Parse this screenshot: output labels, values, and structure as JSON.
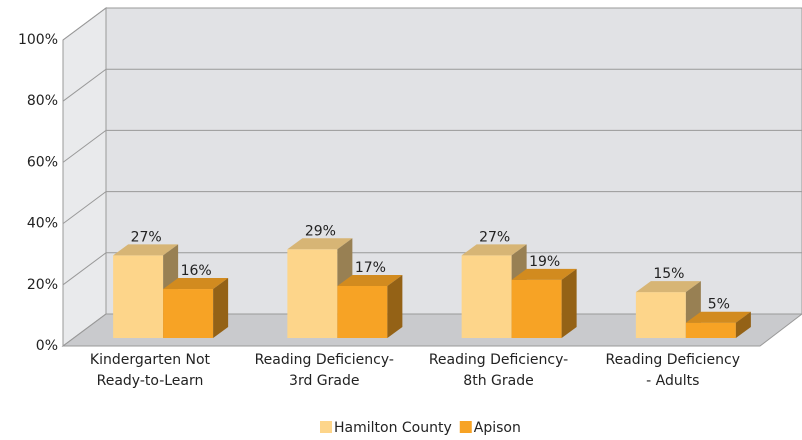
{
  "chart_data": {
    "type": "bar3d",
    "categories": [
      "Kindergarten Not\nReady-to-Learn",
      "Reading Deficiency-\n3rd Grade",
      "Reading Deficiency-\n8th Grade",
      "Reading Deficiency\n- Adults"
    ],
    "series": [
      {
        "name": "Hamilton County",
        "color": "#fdd58a",
        "values": [
          27,
          29,
          27,
          15
        ],
        "value_labels": [
          "27%",
          "29%",
          "27%",
          "15%"
        ]
      },
      {
        "name": "Apison",
        "color": "#f7a325",
        "values": [
          16,
          17,
          19,
          5
        ],
        "value_labels": [
          "16%",
          "17%",
          "19%",
          "5%"
        ]
      }
    ],
    "ylim": [
      0,
      100
    ],
    "yticks": [
      {
        "value": 0,
        "label": "0%"
      },
      {
        "value": 20,
        "label": "20%"
      },
      {
        "value": 40,
        "label": "40%"
      },
      {
        "value": 60,
        "label": "60%"
      },
      {
        "value": 80,
        "label": "80%"
      },
      {
        "value": 100,
        "label": "100%"
      }
    ],
    "grid": true,
    "legend": "bottom"
  }
}
